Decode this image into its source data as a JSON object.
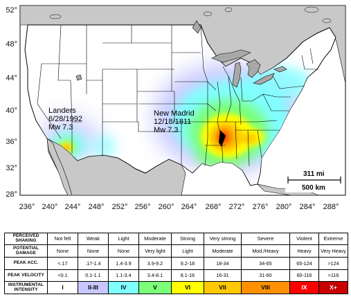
{
  "map": {
    "lat_labels": [
      "52°",
      "48°",
      "44°",
      "40°",
      "36°",
      "32°",
      "28°"
    ],
    "lon_labels": [
      "236°",
      "240°",
      "244°",
      "248°",
      "252°",
      "256°",
      "260°",
      "264°",
      "268°",
      "272°",
      "276°",
      "280°",
      "284°",
      "288°"
    ],
    "annotations": {
      "landers": [
        "Landers",
        "6/28/1992",
        "Mw 7.3"
      ],
      "new_madrid": [
        "New Madrid",
        "12/18/1811",
        "Mw 7.3"
      ]
    },
    "scale_bar": {
      "miles": "311 mi",
      "km": "500 km"
    },
    "colors": {
      "land": "#ffffff",
      "ocean": "#ffffff",
      "neighbors": "#c8c8c8",
      "lakes": "#a8a8a8",
      "borders": "#000000"
    }
  },
  "legend": {
    "rows": [
      {
        "header": [
          "PERCEIVED",
          "SHAKING"
        ],
        "cells": [
          "Not felt",
          "Weak",
          "Light",
          "Moderate",
          "Strong",
          "Very strong",
          "Severe",
          "Violent",
          "Extreme"
        ]
      },
      {
        "header": [
          "POTENTIAL",
          "DAMAGE"
        ],
        "cells": [
          "None",
          "None",
          "None",
          "Very light",
          "Light",
          "Moderate",
          "Mod./Heavy",
          "Heavy",
          "Very Heavy"
        ]
      },
      {
        "header": [
          "PEAK ACC."
        ],
        "cells": [
          "<.17",
          ".17-1.4",
          "1.4-3.9",
          "3.9-9.2",
          "9.2-18",
          "18-34",
          "34-65",
          "65-124",
          ">124"
        ]
      },
      {
        "header": [
          "PEAK VELOCITY"
        ],
        "cells": [
          "<0.1",
          "0.1-1.1",
          "1.1-3.4",
          "3.4-8.1",
          "8.1-16",
          "16-31",
          "31-60",
          "60-116",
          ">116"
        ]
      },
      {
        "header": [
          "INSTRUMENTAL",
          "INTENSITY"
        ],
        "cells": [
          "I",
          "II-III",
          "IV",
          "V",
          "VI",
          "VII",
          "VIII",
          "IX",
          "X+"
        ]
      }
    ],
    "intensity_colors": [
      "#ffffff",
      "#c8c8ff",
      "#80ffff",
      "#7cff79",
      "#ffff00",
      "#ffc800",
      "#ff9100",
      "#ff0000",
      "#c80000"
    ]
  }
}
